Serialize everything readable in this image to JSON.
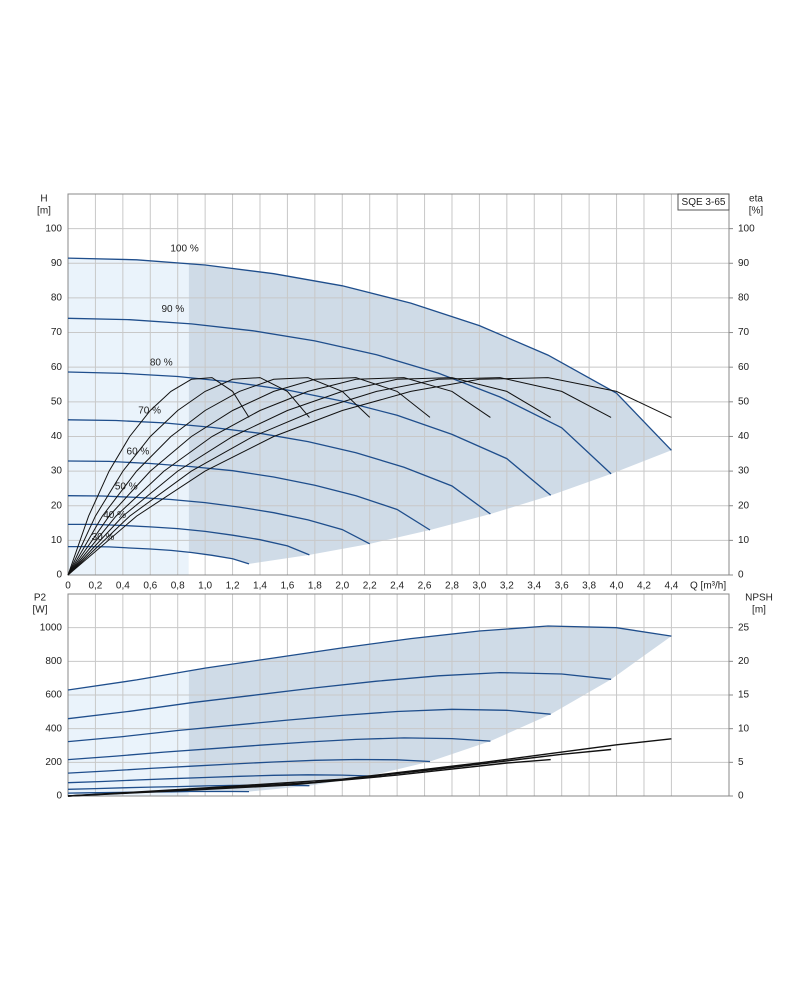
{
  "chart_data": [
    {
      "type": "line",
      "box_label": "SQE 3-65",
      "ylabel": "H",
      "yunit": "[m]",
      "y2label": "eta",
      "y2unit": "[%]",
      "xlabel": "Q [m³/h]",
      "xlim": [
        0,
        4.82
      ],
      "ylim": [
        0,
        110
      ],
      "y2lim": [
        0,
        110
      ],
      "shade_xmin": 0.88,
      "grid": true,
      "xticks": [
        0,
        {
          "value": 0.2,
          "label": "0,2"
        },
        {
          "value": 0.4,
          "label": "0,4"
        },
        {
          "value": 0.6,
          "label": "0,6"
        },
        {
          "value": 0.8,
          "label": "0,8"
        },
        {
          "value": 1,
          "label": "1,0"
        },
        {
          "value": 1.2,
          "label": "1,2"
        },
        {
          "value": 1.4,
          "label": "1,4"
        },
        {
          "value": 1.6,
          "label": "1,6"
        },
        {
          "value": 1.8,
          "label": "1,8"
        },
        {
          "value": 2,
          "label": "2,0"
        },
        {
          "value": 2.2,
          "label": "2,2"
        },
        {
          "value": 2.4,
          "label": "2,4"
        },
        {
          "value": 2.6,
          "label": "2,6"
        },
        {
          "value": 2.8,
          "label": "2,8"
        },
        {
          "value": 3,
          "label": "3,0"
        },
        {
          "value": 3.2,
          "label": "3,2"
        },
        {
          "value": 3.4,
          "label": "3,4"
        },
        {
          "value": 3.6,
          "label": "3,6"
        },
        {
          "value": 3.8,
          "label": "3,8"
        },
        {
          "value": 4,
          "label": "4,0"
        },
        {
          "value": 4.2,
          "label": "4,2"
        },
        {
          "value": 4.4,
          "label": "4,4"
        }
      ],
      "yticks": [
        0,
        10,
        20,
        30,
        40,
        50,
        60,
        70,
        80,
        90,
        100
      ],
      "y2ticks": [
        0,
        10,
        20,
        30,
        40,
        50,
        60,
        70,
        80,
        90,
        100
      ],
      "series": [
        {
          "name": "100 %",
          "color": "#1f4e8c",
          "x": [
            0,
            0.5,
            1,
            1.5,
            2,
            2.5,
            3,
            3.5,
            4,
            4.4
          ],
          "values": [
            91.5,
            91,
            89.5,
            87,
            83.5,
            78.5,
            72,
            63.5,
            52.5,
            36
          ]
        },
        {
          "name": "90 %",
          "color": "#1f4e8c",
          "x": [
            0,
            0.45,
            0.9,
            1.35,
            1.8,
            2.25,
            2.7,
            3.15,
            3.6,
            3.96
          ],
          "values": [
            74.1,
            73.7,
            72.5,
            70.5,
            67.6,
            63.6,
            58.3,
            51.4,
            42.5,
            29.2
          ]
        },
        {
          "name": "80 %",
          "color": "#1f4e8c",
          "x": [
            0,
            0.4,
            0.8,
            1.2,
            1.6,
            2,
            2.4,
            2.8,
            3.2,
            3.52
          ],
          "values": [
            58.6,
            58.2,
            57.3,
            55.7,
            53.4,
            50.2,
            46.1,
            40.6,
            33.6,
            23
          ]
        },
        {
          "name": "70 %",
          "color": "#1f4e8c",
          "x": [
            0,
            0.35,
            0.7,
            1.05,
            1.4,
            1.75,
            2.1,
            2.45,
            2.8,
            3.08
          ],
          "values": [
            44.8,
            44.6,
            43.9,
            42.6,
            40.9,
            38.5,
            35.3,
            31.1,
            25.7,
            17.6
          ]
        },
        {
          "name": "60 %",
          "color": "#1f4e8c",
          "x": [
            0,
            0.3,
            0.6,
            0.9,
            1.2,
            1.5,
            1.8,
            2.1,
            2.4,
            2.64
          ],
          "values": [
            32.9,
            32.8,
            32.2,
            31.3,
            30.1,
            28.3,
            25.9,
            22.9,
            18.9,
            13
          ]
        },
        {
          "name": "50 %",
          "color": "#1f4e8c",
          "x": [
            0,
            0.25,
            0.5,
            0.75,
            1,
            1.25,
            1.5,
            1.75,
            2,
            2.2
          ],
          "values": [
            22.9,
            22.8,
            22.4,
            21.8,
            20.9,
            19.6,
            18,
            15.9,
            13.1,
            9
          ]
        },
        {
          "name": "40 %",
          "color": "#1f4e8c",
          "x": [
            0,
            0.2,
            0.4,
            0.6,
            0.8,
            1,
            1.2,
            1.4,
            1.6,
            1.76
          ],
          "values": [
            14.6,
            14.6,
            14.3,
            13.9,
            13.4,
            12.6,
            11.5,
            10.2,
            8.4,
            5.8
          ]
        },
        {
          "name": "30 %",
          "color": "#1f4e8c",
          "x": [
            0,
            0.15,
            0.3,
            0.45,
            0.6,
            0.75,
            0.9,
            1.05,
            1.2,
            1.32
          ],
          "values": [
            8.2,
            8.2,
            8.1,
            7.8,
            7.5,
            7.1,
            6.5,
            5.7,
            4.7,
            3.2
          ]
        },
        {
          "axis": "y2",
          "color": "#111111",
          "x": [
            0,
            0.5,
            1,
            1.5,
            2,
            2.5,
            3,
            3.5,
            4,
            4.4
          ],
          "values": [
            0,
            17,
            30,
            40,
            47.5,
            53,
            56.5,
            57,
            53,
            45.5
          ]
        },
        {
          "axis": "y2",
          "color": "#111111",
          "x": [
            0,
            0.45,
            0.9,
            1.35,
            1.8,
            2.25,
            2.7,
            3.15,
            3.6,
            3.96
          ],
          "values": [
            0,
            17,
            30,
            40,
            47.5,
            53,
            56.5,
            57,
            53,
            45.5
          ]
        },
        {
          "axis": "y2",
          "color": "#111111",
          "x": [
            0,
            0.4,
            0.8,
            1.2,
            1.6,
            2,
            2.4,
            2.8,
            3.2,
            3.52
          ],
          "values": [
            0,
            17,
            30,
            40,
            47.5,
            53,
            56.5,
            57,
            53,
            45.5
          ]
        },
        {
          "axis": "y2",
          "color": "#111111",
          "x": [
            0,
            0.35,
            0.7,
            1.05,
            1.4,
            1.75,
            2.1,
            2.45,
            2.8,
            3.08
          ],
          "values": [
            0,
            17,
            30,
            40,
            47.5,
            53,
            56.5,
            57,
            53,
            45.5
          ]
        },
        {
          "axis": "y2",
          "color": "#111111",
          "x": [
            0,
            0.3,
            0.6,
            0.9,
            1.2,
            1.5,
            1.8,
            2.1,
            2.4,
            2.64
          ],
          "values": [
            0,
            17,
            30,
            40,
            47.5,
            53,
            56.5,
            57,
            53,
            45.5
          ]
        },
        {
          "axis": "y2",
          "color": "#111111",
          "x": [
            0,
            0.25,
            0.5,
            0.75,
            1,
            1.25,
            1.5,
            1.75,
            2,
            2.2
          ],
          "values": [
            0,
            17,
            30,
            40,
            47.5,
            53,
            56.5,
            57,
            53,
            45.5
          ]
        },
        {
          "axis": "y2",
          "color": "#111111",
          "x": [
            0,
            0.2,
            0.4,
            0.6,
            0.8,
            1,
            1.2,
            1.4,
            1.6,
            1.76
          ],
          "values": [
            0,
            17,
            30,
            40,
            47.5,
            53,
            56.5,
            57,
            53,
            45.5
          ]
        },
        {
          "axis": "y2",
          "color": "#111111",
          "x": [
            0,
            0.15,
            0.3,
            0.45,
            0.6,
            0.75,
            0.9,
            1.05,
            1.2,
            1.32
          ],
          "values": [
            0,
            17,
            30,
            40,
            47.5,
            53,
            56.5,
            57,
            53,
            45.5
          ]
        }
      ]
    },
    {
      "type": "line",
      "ylabel": "P2",
      "yunit": "[W]",
      "y2label": "NPSH",
      "y2unit": "[m]",
      "xlim": [
        0,
        4.82
      ],
      "ylim": [
        0,
        1200
      ],
      "y2lim": [
        0,
        30
      ],
      "shade_xmin": 0.88,
      "grid": true,
      "yticks": [
        0,
        200,
        400,
        600,
        800,
        1000
      ],
      "y2ticks": [
        0,
        5,
        10,
        15,
        20,
        25
      ],
      "series": [
        {
          "color": "#1f4e8c",
          "x": [
            0,
            0.5,
            1,
            1.5,
            2,
            2.5,
            3,
            3.5,
            4,
            4.4
          ],
          "values": [
            630,
            690,
            760,
            820,
            880,
            935,
            980,
            1010,
            1000,
            950
          ]
        },
        {
          "color": "#1f4e8c",
          "x": [
            0,
            0.45,
            0.9,
            1.35,
            1.8,
            2.25,
            2.7,
            3.15,
            3.6,
            3.96
          ],
          "values": [
            459,
            503,
            554,
            598,
            642,
            682,
            714,
            733,
            725,
            693
          ]
        },
        {
          "color": "#1f4e8c",
          "x": [
            0,
            0.4,
            0.8,
            1.2,
            1.6,
            2,
            2.4,
            2.8,
            3.2,
            3.52
          ],
          "values": [
            323,
            353,
            389,
            420,
            451,
            479,
            502,
            515,
            509,
            486
          ]
        },
        {
          "color": "#1f4e8c",
          "x": [
            0,
            0.35,
            0.7,
            1.05,
            1.4,
            1.75,
            2.1,
            2.45,
            2.8,
            3.08
          ],
          "values": [
            216,
            237,
            261,
            281,
            302,
            321,
            336,
            345,
            341,
            326
          ]
        },
        {
          "color": "#1f4e8c",
          "x": [
            0,
            0.3,
            0.6,
            0.9,
            1.2,
            1.5,
            1.8,
            2.1,
            2.4,
            2.64
          ],
          "values": [
            136,
            149,
            164,
            177,
            190,
            202,
            212,
            217,
            215,
            205
          ]
        },
        {
          "color": "#1f4e8c",
          "x": [
            0,
            0.25,
            0.5,
            0.75,
            1,
            1.25,
            1.5,
            1.75,
            2,
            2.2
          ],
          "values": [
            79,
            86,
            95,
            103,
            110,
            117,
            123,
            126,
            124,
            119
          ]
        },
        {
          "color": "#1f4e8c",
          "x": [
            0,
            0.2,
            0.4,
            0.6,
            0.8,
            1,
            1.2,
            1.4,
            1.6,
            1.76
          ],
          "values": [
            40,
            44,
            49,
            53,
            56,
            60,
            63,
            64,
            64,
            61
          ]
        },
        {
          "color": "#1f4e8c",
          "x": [
            0,
            0.15,
            0.3,
            0.45,
            0.6,
            0.75,
            0.9,
            1.05,
            1.2,
            1.32
          ],
          "values": [
            17,
            19,
            21,
            22,
            24,
            25,
            27,
            27,
            27,
            26
          ]
        },
        {
          "axis": "y2",
          "color": "#111111",
          "x": [
            0,
            1,
            2,
            3,
            4,
            4.4
          ],
          "values": [
            0,
            1.2,
            2.5,
            4.9,
            7.6,
            8.5
          ]
        },
        {
          "axis": "y2",
          "color": "#111111",
          "x": [
            0,
            0.9,
            1.8,
            2.7,
            3.6,
            3.96
          ],
          "values": [
            0,
            0.97,
            2,
            4,
            6.2,
            6.9
          ]
        },
        {
          "axis": "y2",
          "color": "#111111",
          "x": [
            0,
            0.8,
            1.6,
            2.4,
            3.2,
            3.52
          ],
          "values": [
            0,
            0.77,
            1.6,
            3.1,
            4.9,
            5.4
          ]
        }
      ]
    }
  ]
}
